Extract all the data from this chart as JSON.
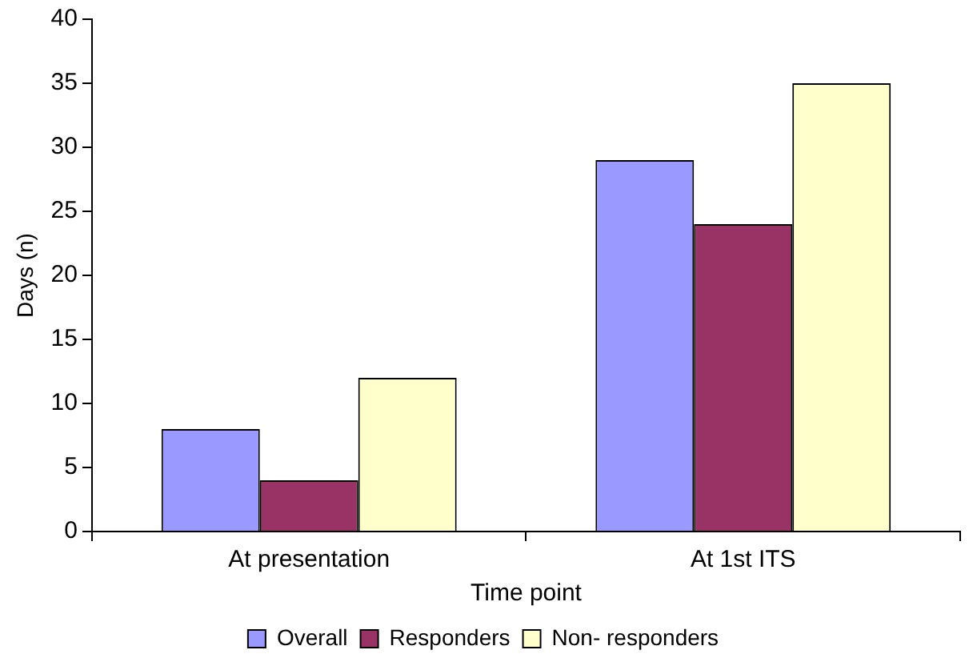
{
  "chart_data": {
    "type": "bar",
    "xlabel": "Time point",
    "ylabel": "Days (n)",
    "categories": [
      "At presentation",
      "At 1st ITS"
    ],
    "series": [
      {
        "name": "Overall",
        "color": "#9999ff",
        "values": [
          8,
          29
        ]
      },
      {
        "name": "Responders",
        "color": "#993366",
        "values": [
          4,
          24
        ]
      },
      {
        "name": "Non- responders",
        "color": "#ffffcc",
        "values": [
          12,
          35
        ]
      }
    ],
    "ylim": [
      0,
      40
    ],
    "yticks": [
      0,
      5,
      10,
      15,
      20,
      25,
      30,
      35,
      40
    ],
    "grid": false,
    "legend": "bottom"
  }
}
